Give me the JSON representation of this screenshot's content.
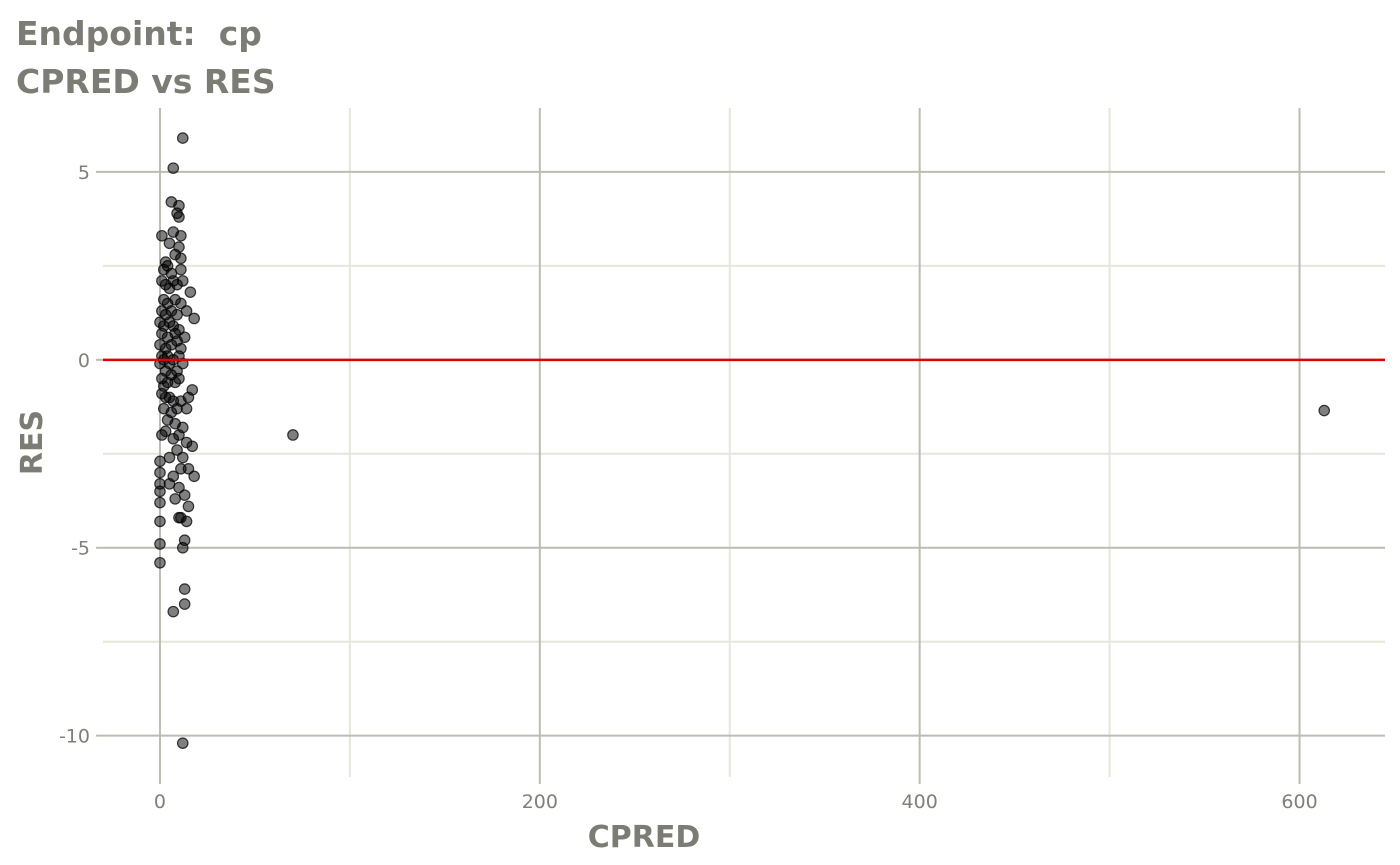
{
  "chart_data": {
    "type": "scatter",
    "title": "Endpoint:  cp",
    "subtitle": "CPRED vs RES",
    "xlabel": "CPRED",
    "ylabel": "RES",
    "xlim": [
      -30,
      645
    ],
    "ylim": [
      -11.1,
      6.7
    ],
    "x_ticks": [
      0,
      200,
      400,
      600
    ],
    "y_ticks": [
      -10,
      -5,
      0,
      5
    ],
    "grid": true,
    "reference_line": {
      "y": 0,
      "color": "#e00000"
    },
    "point_color": "#000000",
    "points": [
      [
        12,
        5.9
      ],
      [
        7,
        5.1
      ],
      [
        6,
        4.2
      ],
      [
        10,
        4.1
      ],
      [
        10,
        3.8
      ],
      [
        9,
        3.9
      ],
      [
        1,
        3.3
      ],
      [
        11,
        3.3
      ],
      [
        7,
        3.4
      ],
      [
        5,
        3.1
      ],
      [
        10,
        3.0
      ],
      [
        3,
        2.6
      ],
      [
        8,
        2.8
      ],
      [
        11,
        2.7
      ],
      [
        2,
        2.4
      ],
      [
        4,
        2.5
      ],
      [
        6,
        2.3
      ],
      [
        11,
        2.4
      ],
      [
        1,
        2.1
      ],
      [
        3,
        2.0
      ],
      [
        7,
        2.1
      ],
      [
        9,
        2.0
      ],
      [
        12,
        2.1
      ],
      [
        16,
        1.8
      ],
      [
        5,
        1.9
      ],
      [
        2,
        1.6
      ],
      [
        4,
        1.5
      ],
      [
        8,
        1.6
      ],
      [
        11,
        1.5
      ],
      [
        1,
        1.3
      ],
      [
        3,
        1.2
      ],
      [
        6,
        1.3
      ],
      [
        9,
        1.2
      ],
      [
        14,
        1.3
      ],
      [
        18,
        1.1
      ],
      [
        0,
        1.0
      ],
      [
        2,
        0.9
      ],
      [
        5,
        1.0
      ],
      [
        7,
        0.9
      ],
      [
        10,
        0.8
      ],
      [
        1,
        0.7
      ],
      [
        4,
        0.6
      ],
      [
        8,
        0.7
      ],
      [
        13,
        0.6
      ],
      [
        0,
        0.4
      ],
      [
        3,
        0.3
      ],
      [
        6,
        0.4
      ],
      [
        9,
        0.5
      ],
      [
        11,
        0.3
      ],
      [
        1,
        0.1
      ],
      [
        2,
        0.0
      ],
      [
        4,
        0.1
      ],
      [
        7,
        0.0
      ],
      [
        10,
        0.1
      ],
      [
        0,
        -0.1
      ],
      [
        5,
        -0.1
      ],
      [
        12,
        -0.1
      ],
      [
        3,
        -0.3
      ],
      [
        6,
        -0.4
      ],
      [
        9,
        -0.3
      ],
      [
        1,
        -0.5
      ],
      [
        2,
        -0.7
      ],
      [
        4,
        -0.6
      ],
      [
        8,
        -0.6
      ],
      [
        10,
        -0.5
      ],
      [
        17,
        -0.8
      ],
      [
        1,
        -0.9
      ],
      [
        3,
        -1.0
      ],
      [
        5,
        -1.0
      ],
      [
        7,
        -1.1
      ],
      [
        11,
        -1.1
      ],
      [
        15,
        -1.0
      ],
      [
        2,
        -1.3
      ],
      [
        6,
        -1.4
      ],
      [
        9,
        -1.3
      ],
      [
        14,
        -1.3
      ],
      [
        4,
        -1.6
      ],
      [
        8,
        -1.7
      ],
      [
        12,
        -1.8
      ],
      [
        3,
        -1.9
      ],
      [
        10,
        -2.0
      ],
      [
        1,
        -2.0
      ],
      [
        7,
        -2.1
      ],
      [
        14,
        -2.2
      ],
      [
        17,
        -2.3
      ],
      [
        9,
        -2.4
      ],
      [
        5,
        -2.6
      ],
      [
        12,
        -2.6
      ],
      [
        0,
        -2.7
      ],
      [
        11,
        -2.9
      ],
      [
        15,
        -2.9
      ],
      [
        0,
        -3.0
      ],
      [
        7,
        -3.1
      ],
      [
        18,
        -3.1
      ],
      [
        0,
        -3.3
      ],
      [
        5,
        -3.3
      ],
      [
        10,
        -3.4
      ],
      [
        0,
        -3.5
      ],
      [
        13,
        -3.6
      ],
      [
        8,
        -3.7
      ],
      [
        0,
        -3.8
      ],
      [
        15,
        -3.9
      ],
      [
        10,
        -4.2
      ],
      [
        11,
        -4.2
      ],
      [
        0,
        -4.3
      ],
      [
        14,
        -4.3
      ],
      [
        13,
        -4.8
      ],
      [
        0,
        -4.9
      ],
      [
        12,
        -5.0
      ],
      [
        0,
        -5.4
      ],
      [
        13,
        -6.1
      ],
      [
        13,
        -6.5
      ],
      [
        7,
        -6.7
      ],
      [
        12,
        -10.2
      ],
      [
        70,
        -2.0
      ],
      [
        613,
        -1.35
      ]
    ]
  }
}
